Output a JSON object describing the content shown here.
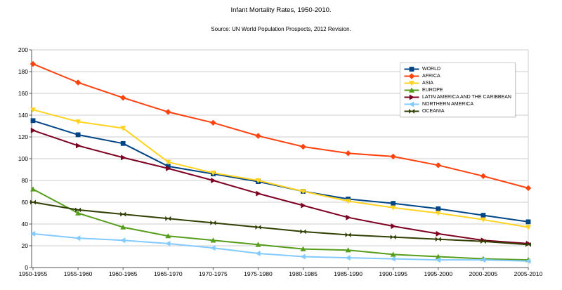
{
  "chart_data": {
    "type": "line",
    "title": "Infant Mortality Rates, 1950-2010.",
    "subtitle": "Source: UN World Population Prospects, 2012 Revision.",
    "categories": [
      "1950-1955",
      "1955-1960",
      "1960-1965",
      "1965-1970",
      "1970-1975",
      "1975-1980",
      "1980-1985",
      "1985-1990",
      "1990-1995",
      "1995-2000",
      "2000-2005",
      "2005-2010"
    ],
    "series": [
      {
        "name": "WORLD",
        "color": "#004586",
        "marker": "square",
        "values": [
          135,
          122,
          114,
          93,
          86,
          79,
          70,
          63,
          59,
          54,
          48,
          42
        ]
      },
      {
        "name": "AFRICA",
        "color": "#FF420E",
        "marker": "diamond",
        "values": [
          187,
          170,
          156,
          143,
          133,
          121,
          111,
          105,
          102,
          94,
          84,
          73
        ]
      },
      {
        "name": "ASIA",
        "color": "#FFD320",
        "marker": "triangle-down",
        "values": [
          145,
          134,
          128,
          97,
          87,
          80,
          70,
          61,
          55,
          50,
          44,
          37
        ]
      },
      {
        "name": "EUROPE",
        "color": "#579D1C",
        "marker": "triangle-up",
        "values": [
          72,
          50,
          37,
          29,
          25,
          21,
          17,
          16,
          12,
          10,
          8,
          7
        ]
      },
      {
        "name": "LATIN AMERICA AND THE CARIBBEAN",
        "color": "#7E0021",
        "marker": "triangle-right",
        "values": [
          126,
          112,
          101,
          91,
          80,
          68,
          57,
          46,
          38,
          31,
          25,
          22
        ]
      },
      {
        "name": "NORTHERN AMERICA",
        "color": "#83CAFF",
        "marker": "triangle-left",
        "values": [
          31,
          27,
          25,
          22,
          18,
          13,
          10,
          9,
          8,
          7,
          7,
          6
        ]
      },
      {
        "name": "OCEANIA",
        "color": "#314004",
        "marker": "bowtie",
        "values": [
          60,
          53,
          49,
          45,
          41,
          37,
          33,
          30,
          28,
          26,
          24,
          21
        ]
      }
    ],
    "ylim": [
      0,
      200
    ],
    "ytick_step": 20,
    "grid": "horizontal",
    "legend_position": "top-right-inside",
    "axis_color": "#555555",
    "grid_color": "#cccccc",
    "background_color": "#ffffff"
  }
}
